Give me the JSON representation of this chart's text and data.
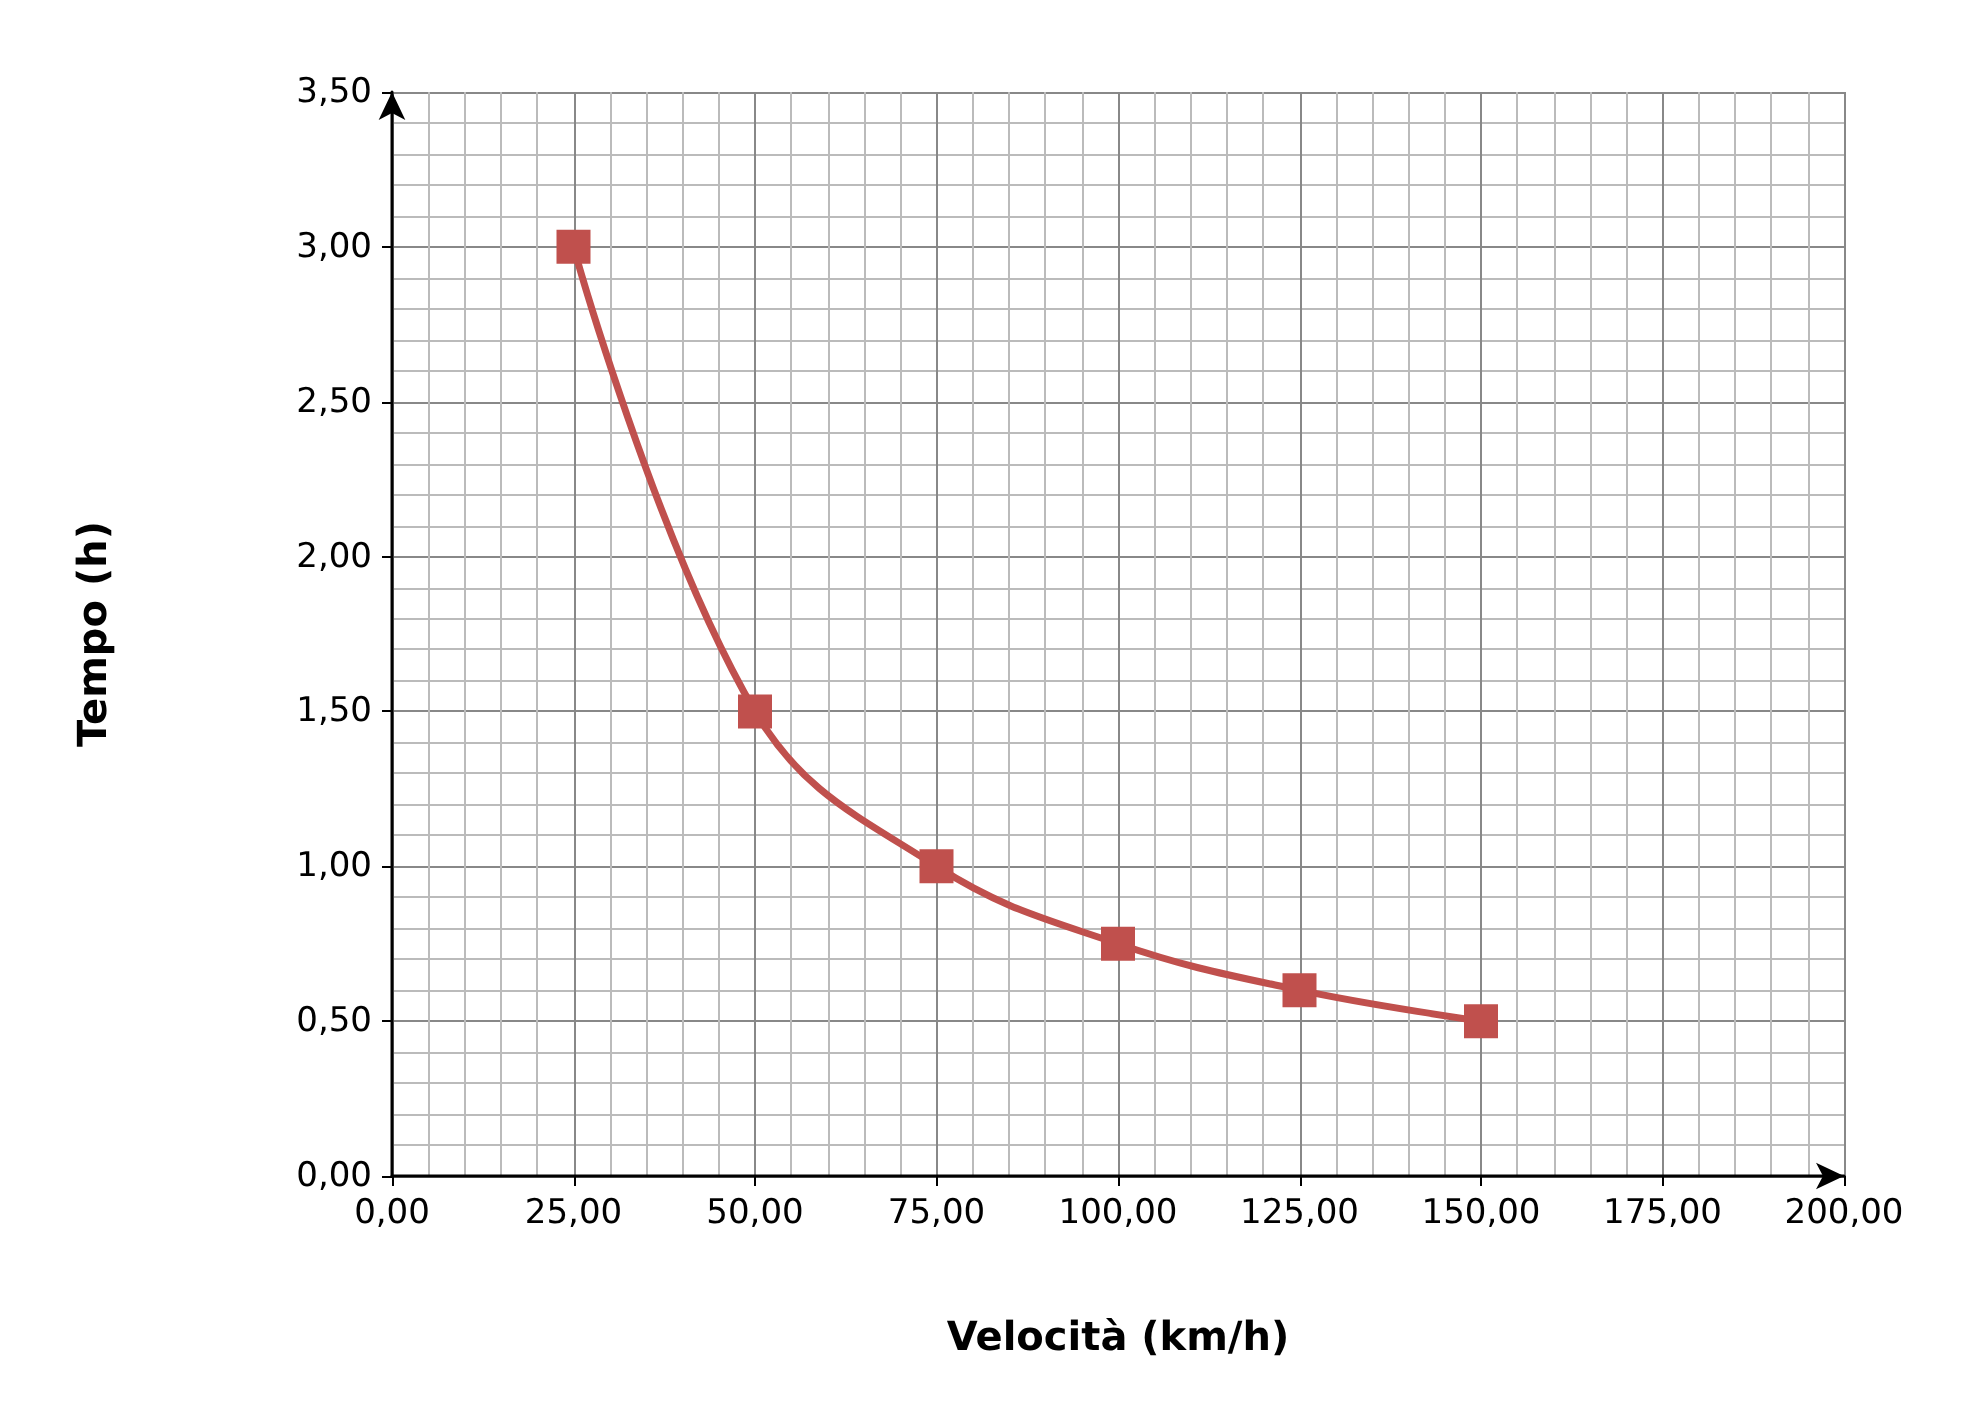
{
  "chart_data": {
    "type": "line",
    "xlabel": "Velocità (km/h)",
    "ylabel": "Tempo (h)",
    "x": [
      25,
      50,
      75,
      100,
      125,
      150
    ],
    "series": [
      {
        "color": "#c0504d",
        "values": [
          3,
          1.5,
          1,
          0.75,
          0.6,
          0.5
        ]
      }
    ],
    "xlim": [
      0,
      200
    ],
    "xticks": [
      {
        "value": 0,
        "label": "0,00"
      },
      {
        "value": 25,
        "label": "25,00"
      },
      {
        "value": 50,
        "label": "50,00"
      },
      {
        "value": 75,
        "label": "75,00"
      },
      {
        "value": 100,
        "label": "100,00"
      },
      {
        "value": 125,
        "label": "125,00"
      },
      {
        "value": 150,
        "label": "150,00"
      },
      {
        "value": 175,
        "label": "175,00"
      },
      {
        "value": 200,
        "label": "200,00"
      }
    ],
    "ylim": [
      0,
      3.5
    ],
    "yticks": [
      {
        "value": 0,
        "label": "0,00"
      },
      {
        "value": 0.5,
        "label": "0,50"
      },
      {
        "value": 1,
        "label": "1,00"
      },
      {
        "value": 1.5,
        "label": "1,50"
      },
      {
        "value": 2,
        "label": "2,00"
      },
      {
        "value": 2.5,
        "label": "2,50"
      },
      {
        "value": 3,
        "label": "3,00"
      },
      {
        "value": 3.5,
        "label": "3,50"
      }
    ],
    "grid": true,
    "marker": "square",
    "line_style": "solid"
  }
}
